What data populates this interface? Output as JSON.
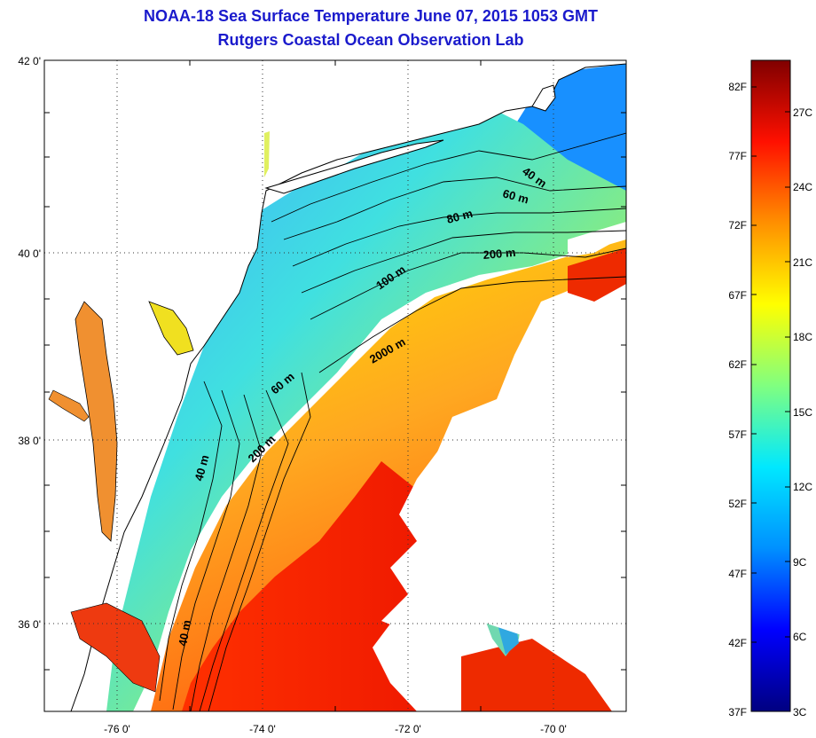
{
  "title": {
    "line1": "NOAA-18 Sea Surface Temperature June 07, 2015 1053 GMT",
    "line2": "Rutgers Coastal Ocean Observation Lab"
  },
  "map": {
    "lat_labels": [
      {
        "lat": 42,
        "label": "42 0'"
      },
      {
        "lat": 40,
        "label": "40 0'"
      },
      {
        "lat": 38,
        "label": "38 0'"
      },
      {
        "lat": 36,
        "label": "36 0'"
      }
    ],
    "lon_labels": [
      {
        "lon": -76,
        "label": "-76 0'"
      },
      {
        "lon": -74,
        "label": "-74 0'"
      },
      {
        "lon": -72,
        "label": "-72 0'"
      },
      {
        "lon": -70,
        "label": "-70 0'"
      }
    ],
    "depth_labels": [
      "40 m",
      "60 m",
      "80 m",
      "200 m",
      "100 m",
      "2000 m",
      "60 m",
      "200 m",
      "40 m",
      "40 m"
    ],
    "colors": {
      "land": "#ffffff",
      "cloud": "#ffffff",
      "contour": "#000000",
      "grid": "#333333"
    }
  },
  "colorbar": {
    "fahrenheit_labels": [
      "82F",
      "77F",
      "72F",
      "67F",
      "62F",
      "57F",
      "52F",
      "47F",
      "42F",
      "37F"
    ],
    "celsius_labels": [
      "27C",
      "24C",
      "21C",
      "18C",
      "15C",
      "12C",
      "9C",
      "6C",
      "3C"
    ],
    "range_c": [
      3,
      28.5
    ],
    "colormap": [
      "#000080",
      "#0000ff",
      "#00a0ff",
      "#00ffff",
      "#a0ff60",
      "#ffff00",
      "#ffa000",
      "#ff2000",
      "#800000"
    ]
  }
}
